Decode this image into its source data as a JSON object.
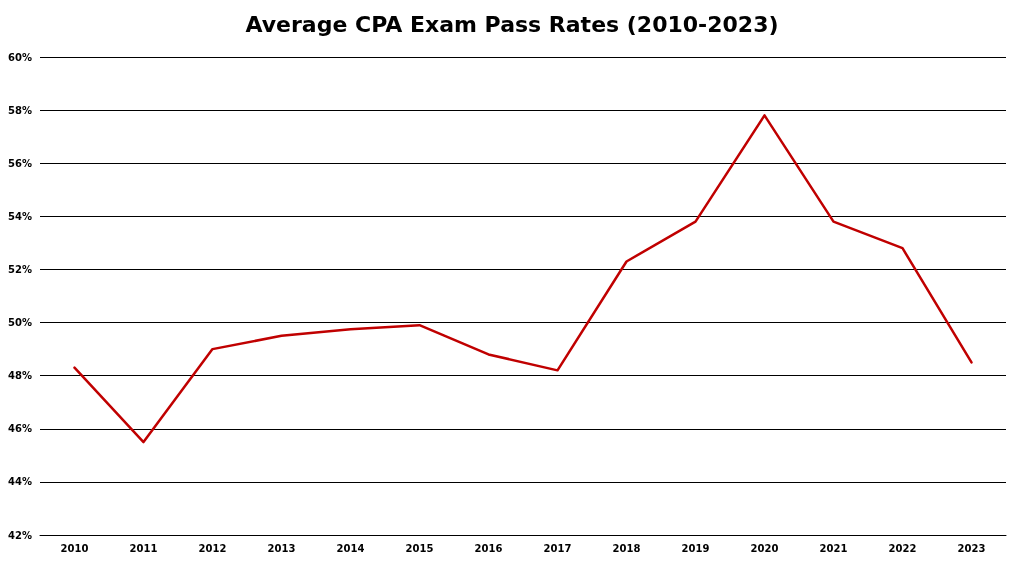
{
  "chart_data": {
    "type": "line",
    "title": "Average CPA Exam Pass Rates (2010-2023)",
    "categories": [
      "2010",
      "2011",
      "2012",
      "2013",
      "2014",
      "2015",
      "2016",
      "2017",
      "2018",
      "2019",
      "2020",
      "2021",
      "2022",
      "2023"
    ],
    "series": [
      {
        "color": "#c00000",
        "values": [
          48.3,
          45.5,
          49.0,
          49.5,
          49.75,
          49.9,
          48.8,
          48.2,
          52.3,
          53.8,
          57.8,
          53.8,
          52.8,
          48.5
        ]
      }
    ],
    "ylim": [
      42,
      60
    ],
    "yticks": [
      {
        "value": 42,
        "label": "42%"
      },
      {
        "value": 44,
        "label": "44%"
      },
      {
        "value": 46,
        "label": "46%"
      },
      {
        "value": 48,
        "label": "48%"
      },
      {
        "value": 50,
        "label": "50%"
      },
      {
        "value": 52,
        "label": "52%"
      },
      {
        "value": 54,
        "label": "54%"
      },
      {
        "value": 56,
        "label": "56%"
      },
      {
        "value": 58,
        "label": "58%"
      },
      {
        "value": 60,
        "label": "60%"
      }
    ],
    "grid": "y",
    "marker": "none",
    "line_style": "solid"
  }
}
